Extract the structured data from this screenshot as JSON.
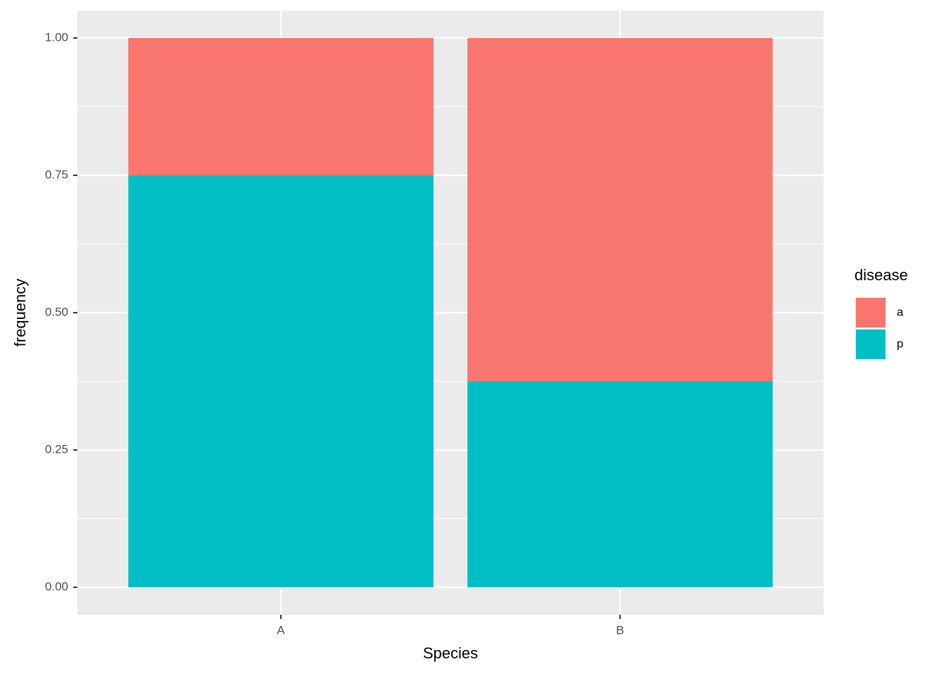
{
  "chart_data": {
    "type": "stacked_bar",
    "x_label": "Species",
    "y_label": "frequency",
    "categories": [
      "A",
      "B"
    ],
    "series": [
      {
        "name": "a",
        "color": "#f8766d",
        "values": [
          0.25,
          0.625
        ]
      },
      {
        "name": "p",
        "color": "#00bfc4",
        "values": [
          0.75,
          0.375
        ]
      }
    ],
    "legend_title": "disease",
    "legend_position": "right",
    "ylim": [
      -0.05,
      1.05
    ],
    "yticks": [
      {
        "value": 0,
        "label": "0.00"
      },
      {
        "value": 0.25,
        "label": "0.25"
      },
      {
        "value": 0.5,
        "label": "0.50"
      },
      {
        "value": 0.75,
        "label": "0.75"
      },
      {
        "value": 1,
        "label": "1.00"
      }
    ],
    "grid": true
  }
}
